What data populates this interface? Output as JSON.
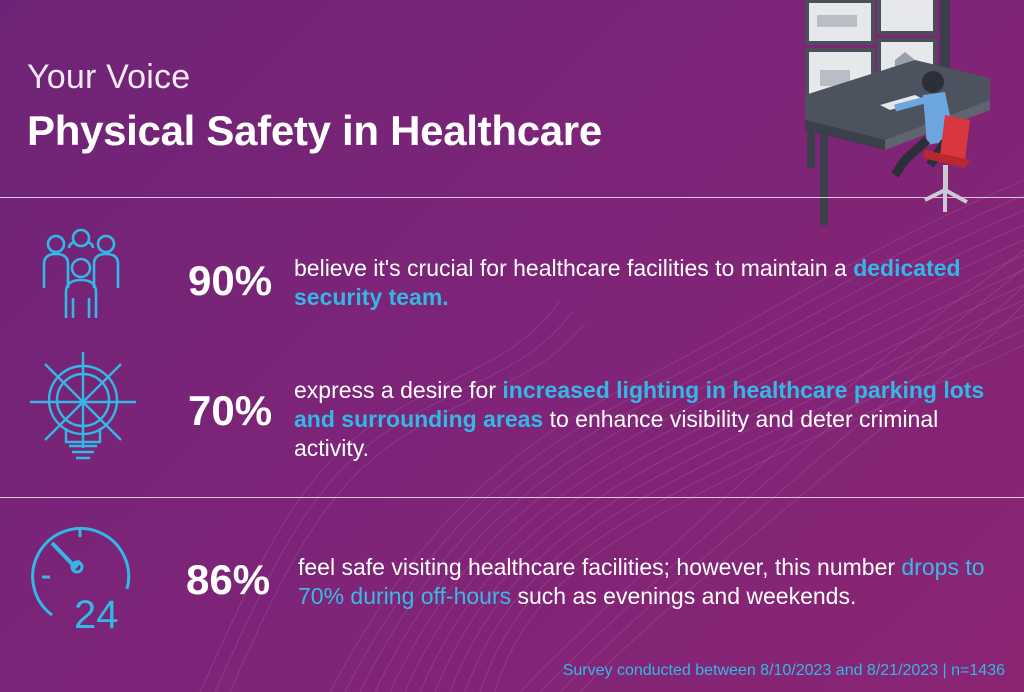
{
  "header": {
    "kicker": "Your Voice",
    "title": "Physical Safety in Healthcare"
  },
  "stats": [
    {
      "percent": "90%",
      "text_before": "believe it's crucial for healthcare facilities to maintain a ",
      "highlight": "dedicated security team.",
      "text_after": "",
      "icon": "team-people-icon"
    },
    {
      "percent": "70%",
      "text_before": "express a desire for ",
      "highlight": "increased lighting in healthcare parking lots and surrounding areas",
      "text_after": " to enhance visibility and deter criminal activity.",
      "icon": "lightbulb-icon"
    },
    {
      "percent": "86%",
      "text_before": "feel safe visiting healthcare facilities; however, this number ",
      "highlight": "drops to 70% during off-hours",
      "text_after": " such as evenings and weekends.",
      "icon": "clock-24-icon",
      "icon_label": "24"
    }
  ],
  "footer": {
    "note": "Survey conducted between 8/10/2023 and 8/21/2023 | n=1436"
  },
  "colors": {
    "accent": "#33b8e6",
    "background": "#7b2477",
    "text": "#ffffff"
  }
}
